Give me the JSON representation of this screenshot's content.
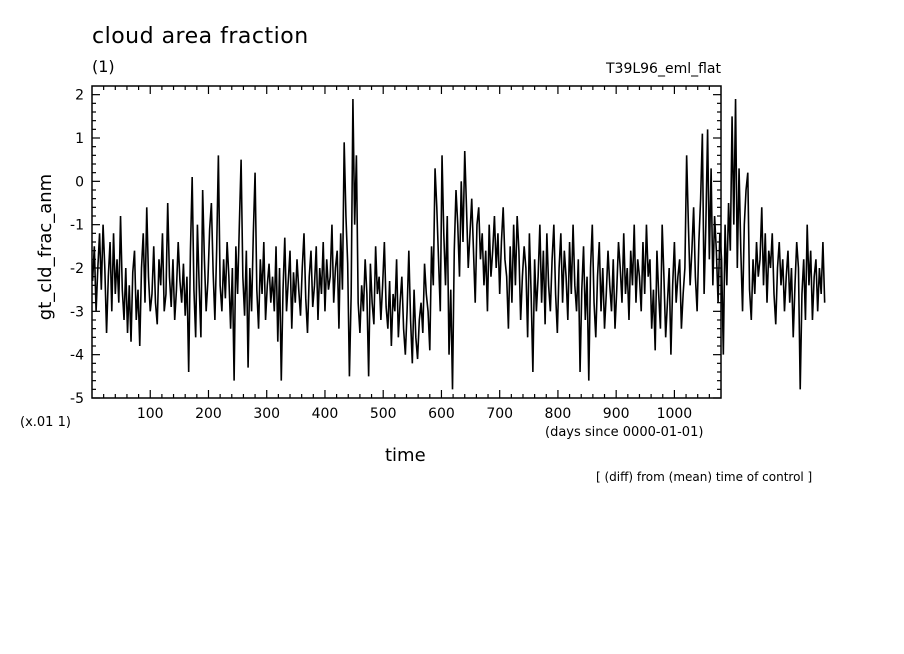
{
  "chart_data": {
    "type": "line",
    "title": "cloud area fraction",
    "units": "(1)",
    "run_label": "T39L96_eml_flat",
    "ylabel": "gt_cld_frac_anm",
    "y_scale_note": "(x.01 1)",
    "xlabel": "time",
    "x_unit_note": "(days since 0000-01-01)",
    "footnote": "[ (diff) from (mean) time of control ]",
    "xlim": [
      0,
      1080
    ],
    "ylim": [
      -5,
      2.2
    ],
    "x_ticks": [
      100,
      200,
      300,
      400,
      500,
      600,
      700,
      800,
      900,
      1000
    ],
    "y_ticks": [
      -5,
      -4,
      -3,
      -2,
      -1,
      0,
      1,
      2
    ],
    "grid": false,
    "color": "#000000",
    "series": [
      {
        "x_step": 3,
        "x_start": 1,
        "values": [
          -2.3,
          -1.5,
          -3.0,
          -2.0,
          -1.2,
          -2.5,
          -1.0,
          -2.0,
          -3.5,
          -2.2,
          -1.4,
          -3.0,
          -1.2,
          -2.6,
          -1.8,
          -2.8,
          -0.8,
          -2.5,
          -3.2,
          -2.0,
          -3.5,
          -2.4,
          -3.7,
          -2.1,
          -1.6,
          -3.2,
          -2.5,
          -3.8,
          -2.0,
          -1.2,
          -2.8,
          -0.6,
          -2.2,
          -3.0,
          -2.6,
          -1.5,
          -2.8,
          -3.3,
          -1.8,
          -2.4,
          -1.2,
          -3.0,
          -2.6,
          -0.5,
          -2.2,
          -2.9,
          -1.8,
          -3.2,
          -2.5,
          -1.4,
          -2.3,
          -2.8,
          -1.9,
          -3.1,
          -2.2,
          -4.4,
          -1.6,
          0.1,
          -2.5,
          -3.6,
          -1.0,
          -2.4,
          -3.6,
          -0.2,
          -1.8,
          -3.0,
          -2.3,
          -1.1,
          -0.5,
          -2.1,
          -3.2,
          -1.6,
          0.6,
          -2.4,
          -3.0,
          -1.8,
          -2.7,
          -1.4,
          -2.2,
          -3.4,
          -2.0,
          -4.6,
          -1.5,
          -2.6,
          -1.0,
          0.5,
          -2.2,
          -3.1,
          -1.6,
          -4.3,
          -2.0,
          -3.0,
          -1.2,
          0.2,
          -2.5,
          -3.4,
          -1.8,
          -2.6,
          -1.4,
          -3.2,
          -2.4,
          -1.9,
          -2.8,
          -2.2,
          -3.0,
          -1.5,
          -3.7,
          -2.0,
          -4.6,
          -2.5,
          -1.3,
          -3.0,
          -2.3,
          -1.6,
          -3.4,
          -2.1,
          -2.8,
          -1.8,
          -2.5,
          -3.1,
          -2.0,
          -1.2,
          -2.7,
          -3.5,
          -2.2,
          -1.6,
          -2.9,
          -2.4,
          -1.5,
          -3.2,
          -2.0,
          -2.6,
          -1.4,
          -3.0,
          -1.8,
          -2.5,
          -2.2,
          -1.0,
          -2.8,
          -2.0,
          -1.6,
          -3.4,
          -1.2,
          -2.5,
          0.9,
          -0.8,
          -1.9,
          -4.5,
          -2.6,
          1.9,
          -1.0,
          0.6,
          -2.8,
          -3.5,
          -2.4,
          -3.0,
          -1.8,
          -2.6,
          -4.5,
          -1.9,
          -2.8,
          -3.3,
          -1.5,
          -2.6,
          -2.2,
          -3.2,
          -2.4,
          -1.4,
          -2.9,
          -3.4,
          -2.3,
          -3.8,
          -2.6,
          -3.0,
          -1.8,
          -3.6,
          -2.8,
          -2.2,
          -3.4,
          -4.0,
          -3.0,
          -1.6,
          -3.2,
          -4.2,
          -2.5,
          -3.6,
          -4.1,
          -3.2,
          -2.8,
          -3.5,
          -1.9,
          -2.6,
          -3.0,
          -3.9,
          -1.5,
          -2.4,
          0.3,
          -0.6,
          -1.8,
          -3.0,
          0.6,
          -1.2,
          -2.4,
          -0.8,
          -4.0,
          -2.5,
          -4.8,
          -1.6,
          -0.2,
          -1.0,
          -2.2,
          0.0,
          -1.4,
          0.7,
          -0.6,
          -2.0,
          -1.2,
          -0.4,
          -1.6,
          -2.8,
          -1.0,
          -0.6,
          -1.8,
          -1.2,
          -2.4,
          -1.6,
          -3.0,
          -1.0,
          -2.2,
          -1.6,
          -0.8,
          -2.0,
          -1.2,
          -2.6,
          -1.4,
          -0.6,
          -1.8,
          -2.2,
          -3.4,
          -1.5,
          -2.8,
          -1.0,
          -2.4,
          -0.8,
          -1.6,
          -3.2,
          -2.2,
          -1.5,
          -2.0,
          -3.6,
          -1.2,
          -2.6,
          -4.4,
          -1.8,
          -3.0,
          -2.2,
          -1.0,
          -2.8,
          -1.6,
          -3.3,
          -1.2,
          -2.4,
          -3.0,
          -1.8,
          -1.0,
          -2.6,
          -3.5,
          -2.0,
          -1.2,
          -2.8,
          -1.6,
          -2.2,
          -3.2,
          -1.4,
          -2.6,
          -1.0,
          -2.4,
          -3.0,
          -1.8,
          -4.4,
          -2.5,
          -1.5,
          -3.2,
          -2.2,
          -4.6,
          -2.0,
          -1.0,
          -2.8,
          -3.6,
          -2.2,
          -1.4,
          -3.0,
          -2.0,
          -3.4,
          -2.6,
          -1.6,
          -2.4,
          -3.0,
          -1.8,
          -3.4,
          -2.5,
          -1.4,
          -2.0,
          -2.8,
          -1.2,
          -2.6,
          -2.0,
          -3.2,
          -1.6,
          -2.4,
          -1.0,
          -2.8,
          -1.8,
          -2.2,
          -3.0,
          -1.4,
          -2.6,
          -1.0,
          -2.2,
          -1.8,
          -3.4,
          -2.5,
          -3.9,
          -1.6,
          -2.6,
          -3.4,
          -1.0,
          -2.2,
          -3.6,
          -2.8,
          -2.0,
          -4.0,
          -2.4,
          -1.4,
          -2.8,
          -2.2,
          -1.8,
          -3.4,
          -2.6,
          -2.0,
          0.6,
          -1.0,
          -2.4,
          -1.6,
          -0.6,
          -2.2,
          -3.0,
          -1.4,
          -0.4,
          1.1,
          -2.6,
          -1.0,
          1.2,
          -1.8,
          0.3,
          -2.4,
          -0.8,
          -1.6,
          -2.8,
          -1.2,
          -1.8,
          -4.0,
          -1.0,
          -2.4,
          -0.5,
          -1.6,
          1.5,
          -1.0,
          1.9,
          -2.0,
          0.3,
          -1.6,
          -3.0,
          -1.0,
          -0.2,
          0.2,
          -2.5,
          -3.2,
          -1.8,
          -2.6,
          -1.4,
          -2.2,
          -1.8,
          -0.6,
          -2.4,
          -1.2,
          -2.8,
          -1.6,
          -2.0,
          -1.2,
          -2.6,
          -3.3,
          -2.0,
          -1.4,
          -2.4,
          -1.8,
          -3.0,
          -2.2,
          -1.6,
          -2.8,
          -2.0,
          -3.6,
          -2.4,
          -1.4,
          -2.0,
          -4.8,
          -2.6,
          -1.8,
          -3.2,
          -1.0,
          -2.4,
          -1.6,
          -3.2,
          -2.2,
          -1.8,
          -3.0,
          -2.0,
          -2.6,
          -1.4,
          -2.8
        ]
      }
    ]
  }
}
